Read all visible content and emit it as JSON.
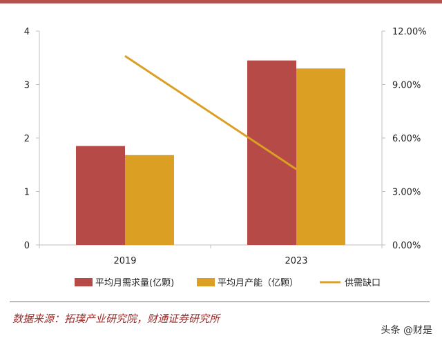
{
  "colors": {
    "top_bar": "#b5504f",
    "demand": "#b54a46",
    "capacity": "#dba023",
    "gap": "#dba023",
    "axis": "#bfbfbf",
    "source": "#9b2d2a"
  },
  "chart_data": {
    "type": "bar",
    "categories": [
      "2019",
      "2023"
    ],
    "series": [
      {
        "name": "平均月需求量(亿颗)",
        "values": [
          1.85,
          3.45
        ],
        "axis": "left",
        "type": "bar"
      },
      {
        "name": "平均月产能（亿颗）",
        "values": [
          1.68,
          3.3
        ],
        "axis": "left",
        "type": "bar"
      },
      {
        "name": "供需缺口",
        "values": [
          0.106,
          0.0425
        ],
        "axis": "right",
        "type": "line"
      }
    ],
    "y_left": {
      "lim": [
        0,
        4
      ],
      "ticks": [
        "0",
        "1",
        "2",
        "3",
        "4"
      ]
    },
    "y_right": {
      "lim": [
        0,
        0.12
      ],
      "ticks": [
        "0.00%",
        "3.00%",
        "6.00%",
        "9.00%",
        "12.00%"
      ]
    },
    "legend_position": "bottom",
    "grid": false
  },
  "source_text": "数据来源：拓璞产业研究院，财通证券研究所",
  "watermark": "头条 @财是"
}
